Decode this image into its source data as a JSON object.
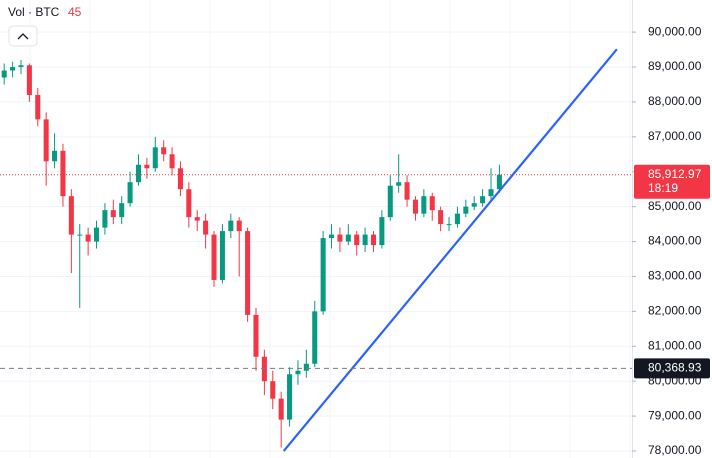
{
  "chart_data": {
    "type": "candlestick",
    "volume_legend": {
      "label": "Vol · BTC",
      "value": 45
    },
    "up_color": "#089981",
    "down_color": "#f23645",
    "open": [
      88700,
      88900,
      89000,
      89050,
      88200,
      87500,
      86300,
      86600,
      85300,
      84200,
      84200,
      84000,
      84400,
      84900,
      84700,
      85100,
      85700,
      86200,
      86100,
      86700,
      86500,
      86100,
      85500,
      84700,
      84600,
      84200,
      82900,
      84300,
      84600,
      84300,
      81900,
      80700,
      80000,
      79500,
      78900,
      80200,
      80300,
      80500,
      82000,
      84100,
      84200,
      84000,
      84200,
      83900,
      84200,
      83900,
      84700,
      85600,
      85700,
      85200,
      84800,
      85300,
      84900,
      84500,
      84500,
      84800,
      85000,
      85100,
      85300,
      85500
    ],
    "high": [
      89100,
      89150,
      89200,
      89100,
      88400,
      87700,
      87100,
      86800,
      85500,
      84500,
      84400,
      84600,
      85100,
      85200,
      85300,
      86000,
      86500,
      86400,
      87000,
      86900,
      86700,
      86300,
      85700,
      84900,
      84800,
      84300,
      84500,
      84800,
      84700,
      84400,
      82100,
      80900,
      80300,
      79700,
      80400,
      80600,
      80900,
      82300,
      84300,
      84500,
      84400,
      84500,
      84300,
      84400,
      84300,
      84900,
      85900,
      86500,
      85900,
      85300,
      85500,
      85400,
      85000,
      84700,
      85000,
      85200,
      85300,
      85500,
      86100,
      86200
    ],
    "low": [
      88500,
      88700,
      88800,
      88000,
      87300,
      85600,
      86100,
      85000,
      83100,
      82100,
      83600,
      83800,
      84200,
      84500,
      84500,
      85000,
      85600,
      85800,
      86000,
      86300,
      85900,
      85300,
      84400,
      84300,
      83800,
      82700,
      82800,
      84100,
      83000,
      81700,
      80300,
      79600,
      79200,
      78100,
      78700,
      79900,
      80100,
      80400,
      81900,
      83800,
      83700,
      83900,
      83600,
      83700,
      83700,
      83800,
      84600,
      85400,
      85000,
      84600,
      84700,
      84600,
      84300,
      84300,
      84400,
      84700,
      84900,
      85000,
      85200,
      85400
    ],
    "close": [
      88900,
      89000,
      89050,
      88200,
      87500,
      86300,
      86600,
      85300,
      84200,
      84200,
      84000,
      84400,
      84900,
      84700,
      85100,
      85700,
      86200,
      86100,
      86700,
      86500,
      86100,
      85500,
      84700,
      84600,
      84200,
      82900,
      84300,
      84600,
      84300,
      81900,
      80700,
      80000,
      79500,
      78900,
      80200,
      80300,
      80500,
      82000,
      84100,
      84200,
      84000,
      84200,
      83900,
      84200,
      83900,
      84700,
      85600,
      85700,
      85200,
      84800,
      85300,
      84900,
      84500,
      84500,
      84800,
      85000,
      85100,
      85300,
      85500,
      85912.97
    ],
    "xlim": [
      -0.5,
      74.8
    ],
    "ylim": [
      77800,
      90920
    ],
    "yticks": [
      {
        "value": 78000,
        "label": "78,000.00"
      },
      {
        "value": 79000,
        "label": "79,000.00"
      },
      {
        "value": 80000,
        "label": "80,000.00"
      },
      {
        "value": 81000,
        "label": "81,000.00"
      },
      {
        "value": 82000,
        "label": "82,000.00"
      },
      {
        "value": 83000,
        "label": "83,000.00"
      },
      {
        "value": 84000,
        "label": "84,000.00"
      },
      {
        "value": 85000,
        "label": "85,000.00"
      },
      {
        "value": 86000,
        "label": "86,000.00"
      },
      {
        "value": 87000,
        "label": "87,000.00"
      },
      {
        "value": 88000,
        "label": "88,000.00"
      },
      {
        "value": 89000,
        "label": "89,000.00"
      },
      {
        "value": 90000,
        "label": "90,000.00"
      }
    ],
    "grid": true,
    "trend_line": {
      "x": [
        33.3,
        73
      ],
      "y": [
        78000,
        89510
      ],
      "color": "#2962ff"
    },
    "price_lines": [
      {
        "value": 85912.97,
        "label": "85,912.97",
        "sublabel": "18:19",
        "color": "#f23645",
        "style": "dotted"
      },
      {
        "value": 80368.93,
        "label": "80,368.93",
        "color": "#131722",
        "style": "dashed"
      }
    ]
  }
}
